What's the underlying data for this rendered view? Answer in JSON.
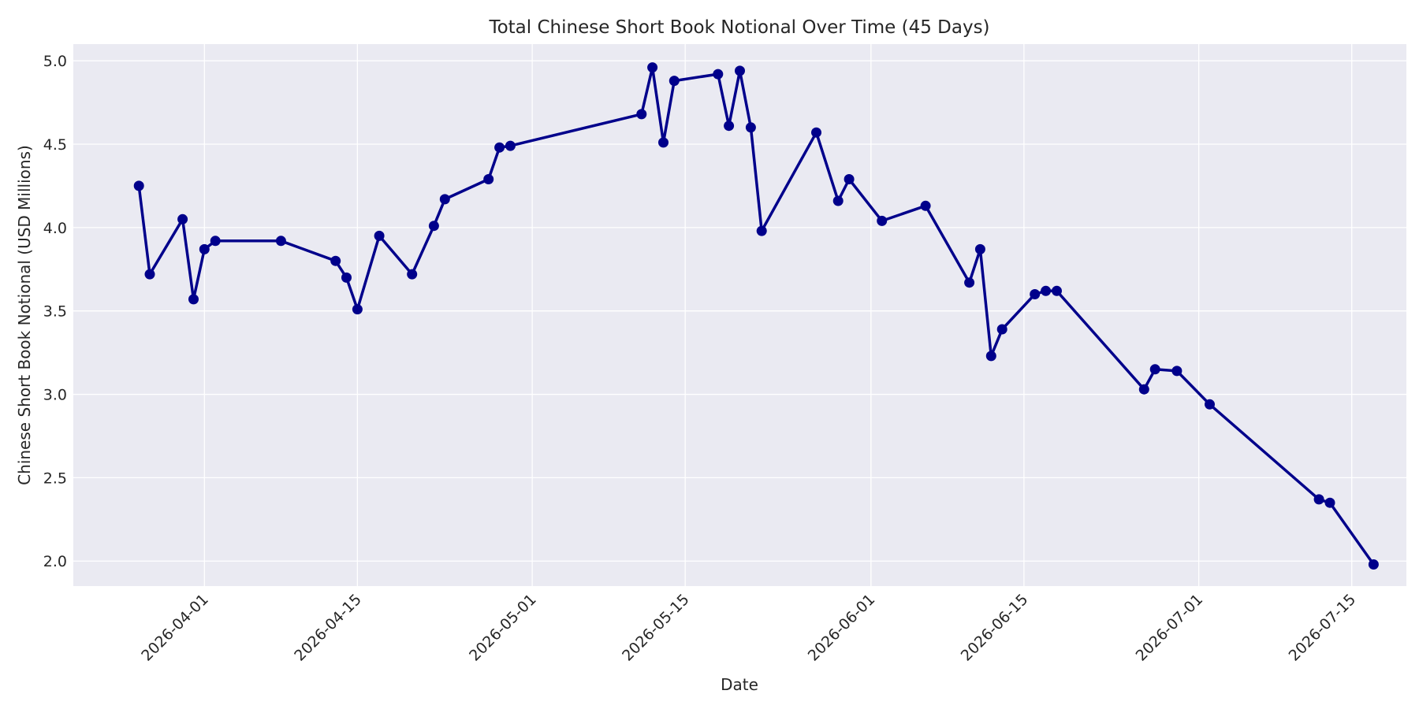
{
  "chart_data": {
    "type": "line",
    "title": "Total Chinese Short Book Notional Over Time (45 Days)",
    "xlabel": "Date",
    "ylabel": "Chinese Short Book Notional (USD Millions)",
    "xlim": [
      "2026-03-20",
      "2026-07-20"
    ],
    "ylim": [
      1.85,
      5.1
    ],
    "grid": true,
    "colors": {
      "line": "#00008B",
      "plot_bg": "#EAEAF2",
      "grid": "#FFFFFF"
    },
    "x_ticks": [
      "2026-04-01",
      "2026-04-15",
      "2026-05-01",
      "2026-05-15",
      "2026-06-01",
      "2026-06-15",
      "2026-07-01",
      "2026-07-15"
    ],
    "y_ticks": [
      "2.0",
      "2.5",
      "3.0",
      "3.5",
      "4.0",
      "4.5",
      "5.0"
    ],
    "series": [
      {
        "x": [
          "2026-03-26",
          "2026-03-27",
          "2026-03-30",
          "2026-03-31",
          "2026-04-01",
          "2026-04-02",
          "2026-04-08",
          "2026-04-13",
          "2026-04-14",
          "2026-04-15",
          "2026-04-17",
          "2026-04-20",
          "2026-04-22",
          "2026-04-23",
          "2026-04-27",
          "2026-04-28",
          "2026-04-29",
          "2026-05-11",
          "2026-05-12",
          "2026-05-13",
          "2026-05-14",
          "2026-05-18",
          "2026-05-19",
          "2026-05-20",
          "2026-05-21",
          "2026-05-22",
          "2026-05-27",
          "2026-05-29",
          "2026-05-30",
          "2026-06-02",
          "2026-06-06",
          "2026-06-10",
          "2026-06-11",
          "2026-06-12",
          "2026-06-13",
          "2026-06-16",
          "2026-06-17",
          "2026-06-18",
          "2026-06-26",
          "2026-06-27",
          "2026-06-29",
          "2026-07-02",
          "2026-07-12",
          "2026-07-13",
          "2026-07-17"
        ],
        "y": [
          4.25,
          3.72,
          4.05,
          3.57,
          3.87,
          3.92,
          3.92,
          3.8,
          3.7,
          3.51,
          3.95,
          3.72,
          4.01,
          4.17,
          4.29,
          4.48,
          4.49,
          4.68,
          4.96,
          4.51,
          4.88,
          4.92,
          4.61,
          4.94,
          4.6,
          3.98,
          4.57,
          4.16,
          4.29,
          4.04,
          4.13,
          3.67,
          3.87,
          3.23,
          3.39,
          3.6,
          3.62,
          3.62,
          3.03,
          3.15,
          3.14,
          2.94,
          2.37,
          2.35,
          1.98
        ]
      }
    ]
  }
}
